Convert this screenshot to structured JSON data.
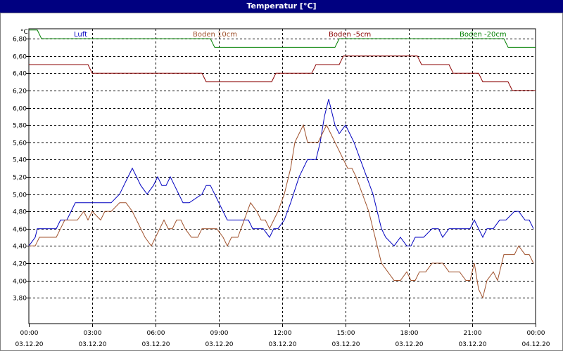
{
  "window": {
    "title": "Temperatur [°C]"
  },
  "chart_data": {
    "type": "line",
    "title": "Temperatur [°C]",
    "ylabel": "°C",
    "ylim": [
      3.6,
      6.9
    ],
    "yticks": [
      "6,80",
      "6,60",
      "6,40",
      "6,20",
      "6,00",
      "5,80",
      "5,60",
      "5,40",
      "5,20",
      "5,00",
      "4,80",
      "4,60",
      "4,40",
      "4,20",
      "4,00",
      "3,80"
    ],
    "ytick_values": [
      6.8,
      6.6,
      6.4,
      6.2,
      6.0,
      5.8,
      5.6,
      5.4,
      5.2,
      5.0,
      4.8,
      4.6,
      4.4,
      4.2,
      4.0,
      3.8
    ],
    "xlim_hours": [
      0,
      24
    ],
    "xticks": [
      {
        "time": "00:00",
        "date": "03.12.20",
        "hour": 0
      },
      {
        "time": "03:00",
        "date": "03.12.20",
        "hour": 3
      },
      {
        "time": "06:00",
        "date": "03.12.20",
        "hour": 6
      },
      {
        "time": "09:00",
        "date": "03.12.20",
        "hour": 9
      },
      {
        "time": "12:00",
        "date": "03.12.20",
        "hour": 12
      },
      {
        "time": "15:00",
        "date": "03.12.20",
        "hour": 15
      },
      {
        "time": "18:00",
        "date": "03.12.20",
        "hour": 18
      },
      {
        "time": "21:00",
        "date": "03.12.20",
        "hour": 21
      },
      {
        "time": "00:00",
        "date": "04.12.20",
        "hour": 24
      }
    ],
    "grid": true,
    "series": [
      {
        "name": "Luft",
        "color": "#0000c0",
        "hours": [
          0,
          0.3,
          0.4,
          1.3,
          1.5,
          1.8,
          2.0,
          2.2,
          3.9,
          4.3,
          4.5,
          4.7,
          4.9,
          5.1,
          5.3,
          5.6,
          5.9,
          6.1,
          6.3,
          6.5,
          6.7,
          6.9,
          7.1,
          7.3,
          7.5,
          7.6,
          8.2,
          8.4,
          8.6,
          8.8,
          9.0,
          9.2,
          9.4,
          10.4,
          10.6,
          11.1,
          11.4,
          11.6,
          11.8,
          12.1,
          12.4,
          12.8,
          13.2,
          13.6,
          13.8,
          14.0,
          14.2,
          14.3,
          14.5,
          14.7,
          15.0,
          15.2,
          15.4,
          15.7,
          16.0,
          16.3,
          16.5,
          16.7,
          16.9,
          17.3,
          17.6,
          17.9,
          18.1,
          18.3,
          18.7,
          19.1,
          19.4,
          19.6,
          19.9,
          20.2,
          20.5,
          20.7,
          20.9,
          21.1,
          21.3,
          21.5,
          21.7,
          22.0,
          22.3,
          22.6,
          23.0,
          23.2,
          23.5,
          23.7,
          23.9
        ],
        "values": [
          4.4,
          4.5,
          4.6,
          4.6,
          4.7,
          4.7,
          4.8,
          4.9,
          4.9,
          5.0,
          5.1,
          5.2,
          5.3,
          5.2,
          5.1,
          5.0,
          5.1,
          5.2,
          5.1,
          5.1,
          5.2,
          5.1,
          5.0,
          4.9,
          4.9,
          4.9,
          5.0,
          5.1,
          5.1,
          5.0,
          4.9,
          4.8,
          4.7,
          4.7,
          4.6,
          4.6,
          4.5,
          4.6,
          4.6,
          4.7,
          4.9,
          5.2,
          5.4,
          5.4,
          5.6,
          5.9,
          6.1,
          6.0,
          5.8,
          5.7,
          5.8,
          5.7,
          5.6,
          5.4,
          5.2,
          5.0,
          4.8,
          4.6,
          4.5,
          4.4,
          4.5,
          4.4,
          4.4,
          4.5,
          4.5,
          4.6,
          4.6,
          4.5,
          4.6,
          4.6,
          4.6,
          4.6,
          4.6,
          4.7,
          4.6,
          4.5,
          4.6,
          4.6,
          4.7,
          4.7,
          4.8,
          4.8,
          4.7,
          4.7,
          4.6
        ]
      },
      {
        "name": "Boden 10cm",
        "color": "#a0522d",
        "hours": [
          0,
          0.3,
          0.5,
          1.3,
          1.5,
          1.7,
          2.3,
          2.6,
          2.8,
          3.0,
          3.4,
          3.6,
          3.9,
          4.3,
          4.6,
          4.9,
          5.1,
          5.3,
          5.5,
          5.8,
          6.0,
          6.2,
          6.4,
          6.6,
          6.8,
          7.0,
          7.2,
          7.4,
          7.7,
          8.0,
          8.2,
          8.4,
          8.9,
          9.2,
          9.4,
          9.6,
          9.9,
          10.2,
          10.5,
          10.8,
          11.0,
          11.2,
          11.4,
          11.6,
          11.8,
          12.1,
          12.4,
          12.6,
          12.8,
          13.0,
          13.2,
          13.4,
          13.7,
          13.9,
          14.1,
          14.3,
          14.5,
          14.7,
          14.9,
          15.1,
          15.3,
          15.5,
          15.8,
          16.1,
          16.4,
          16.7,
          17.0,
          17.3,
          17.6,
          17.9,
          18.1,
          18.3,
          18.5,
          18.8,
          19.1,
          19.4,
          19.6,
          19.9,
          20.2,
          20.4,
          20.7,
          20.9,
          21.1,
          21.3,
          21.5,
          21.7,
          22.0,
          22.2,
          22.5,
          22.7,
          23.0,
          23.2,
          23.5,
          23.7,
          23.9
        ],
        "values": [
          4.4,
          4.4,
          4.5,
          4.5,
          4.6,
          4.7,
          4.7,
          4.8,
          4.7,
          4.8,
          4.7,
          4.8,
          4.8,
          4.9,
          4.9,
          4.8,
          4.7,
          4.6,
          4.5,
          4.4,
          4.5,
          4.6,
          4.7,
          4.6,
          4.6,
          4.7,
          4.7,
          4.6,
          4.5,
          4.5,
          4.6,
          4.6,
          4.6,
          4.5,
          4.4,
          4.5,
          4.5,
          4.7,
          4.9,
          4.8,
          4.7,
          4.7,
          4.6,
          4.7,
          4.8,
          5.0,
          5.3,
          5.6,
          5.7,
          5.8,
          5.6,
          5.6,
          5.6,
          5.7,
          5.8,
          5.7,
          5.6,
          5.5,
          5.4,
          5.3,
          5.3,
          5.2,
          5.0,
          4.8,
          4.5,
          4.2,
          4.1,
          4.0,
          4.0,
          4.1,
          4.0,
          4.0,
          4.1,
          4.1,
          4.2,
          4.2,
          4.2,
          4.1,
          4.1,
          4.1,
          4.0,
          4.0,
          4.2,
          3.9,
          3.8,
          4.0,
          4.1,
          4.0,
          4.3,
          4.3,
          4.3,
          4.4,
          4.3,
          4.3,
          4.2
        ]
      },
      {
        "name": "Boden -5cm",
        "color": "#8b0000",
        "hours": [
          0,
          2.8,
          3.0,
          8.2,
          8.4,
          11.5,
          11.7,
          13.4,
          13.6,
          14.7,
          14.9,
          18.4,
          18.6,
          19.9,
          20.1,
          21.3,
          21.5,
          22.7,
          22.9,
          24.0
        ],
        "values": [
          6.5,
          6.5,
          6.4,
          6.4,
          6.3,
          6.3,
          6.4,
          6.4,
          6.5,
          6.5,
          6.6,
          6.6,
          6.5,
          6.5,
          6.4,
          6.4,
          6.3,
          6.3,
          6.2,
          6.2
        ],
        "step": true
      },
      {
        "name": "Boden -20cm",
        "color": "#008000",
        "hours": [
          0,
          0.4,
          0.6,
          8.6,
          8.8,
          14.5,
          14.7,
          22.5,
          22.7,
          24.0
        ],
        "values": [
          6.9,
          6.9,
          6.8,
          6.8,
          6.7,
          6.7,
          6.8,
          6.8,
          6.7,
          6.7
        ]
      }
    ]
  }
}
